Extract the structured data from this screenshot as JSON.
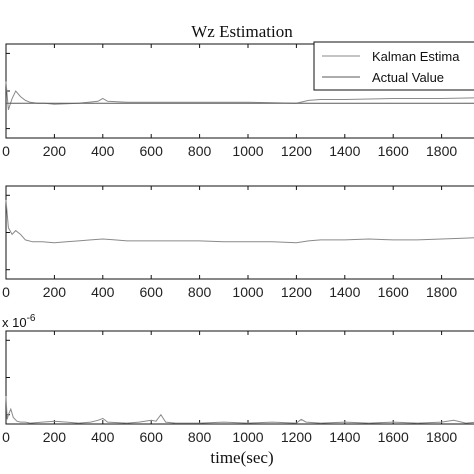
{
  "chart_data": [
    {
      "type": "line",
      "title": "Wz Estimation",
      "xlabel": "",
      "ylabel": "",
      "xlim": [
        0,
        2000
      ],
      "xticks": [
        0,
        200,
        400,
        600,
        800,
        1000,
        1200,
        1400,
        1600,
        1800
      ],
      "legend": {
        "placement": "top-right",
        "entries": [
          "Kalman Estima",
          "Actual Value"
        ]
      },
      "series": [
        {
          "name": "Kalman Estima",
          "x": [
            0,
            10,
            25,
            40,
            60,
            80,
            100,
            130,
            160,
            200,
            300,
            380,
            400,
            420,
            500,
            600,
            800,
            1000,
            1200,
            1250,
            1300,
            1400,
            1600,
            1800,
            2000
          ],
          "y": [
            0.6,
            0.3,
            0.42,
            0.5,
            0.44,
            0.4,
            0.38,
            0.37,
            0.37,
            0.36,
            0.37,
            0.39,
            0.42,
            0.39,
            0.38,
            0.38,
            0.38,
            0.38,
            0.37,
            0.4,
            0.41,
            0.41,
            0.42,
            0.42,
            0.43
          ]
        },
        {
          "name": "Actual Value",
          "x": [
            0,
            2000
          ],
          "y": [
            0.37,
            0.37
          ]
        }
      ]
    },
    {
      "type": "line",
      "title": "",
      "xlabel": "",
      "ylabel": "",
      "xlim": [
        0,
        2000
      ],
      "xticks": [
        0,
        200,
        400,
        600,
        800,
        1000,
        1200,
        1400,
        1600,
        1800
      ],
      "series": [
        {
          "x": [
            0,
            10,
            25,
            40,
            60,
            80,
            110,
            150,
            200,
            250,
            300,
            350,
            400,
            450,
            500,
            600,
            700,
            800,
            900,
            1000,
            1100,
            1200,
            1250,
            1300,
            1400,
            1500,
            1600,
            1700,
            1800,
            1900,
            2000
          ],
          "y": [
            0.85,
            0.55,
            0.48,
            0.52,
            0.48,
            0.42,
            0.4,
            0.4,
            0.39,
            0.4,
            0.41,
            0.42,
            0.43,
            0.42,
            0.41,
            0.41,
            0.41,
            0.41,
            0.4,
            0.4,
            0.4,
            0.39,
            0.41,
            0.42,
            0.42,
            0.43,
            0.42,
            0.42,
            0.43,
            0.44,
            0.45
          ]
        }
      ]
    },
    {
      "type": "line",
      "title": "",
      "xlabel": "time(sec)",
      "ylabel": "",
      "y_exponent": "x 10",
      "y_exponent_power": "-6",
      "xlim": [
        0,
        2000
      ],
      "xticks": [
        0,
        200,
        400,
        600,
        800,
        1000,
        1200,
        1400,
        1600,
        1800
      ],
      "series": [
        {
          "x": [
            0,
            5,
            10,
            20,
            30,
            45,
            60,
            80,
            100,
            150,
            200,
            250,
            300,
            350,
            380,
            400,
            420,
            500,
            550,
            600,
            620,
            640,
            660,
            700,
            800,
            900,
            1000,
            1100,
            1200,
            1220,
            1240,
            1300,
            1400,
            1500,
            1600,
            1700,
            1800,
            1850,
            1900,
            1950,
            2000
          ],
          "y": [
            0.3,
            0.05,
            0.1,
            0.16,
            0.07,
            0.03,
            0.02,
            0.02,
            0.01,
            0.02,
            0.03,
            0.02,
            0.01,
            0.02,
            0.04,
            0.06,
            0.02,
            0.01,
            0.02,
            0.04,
            0.03,
            0.1,
            0.02,
            0.01,
            0.01,
            0.02,
            0.01,
            0.02,
            0.01,
            0.05,
            0.02,
            0.01,
            0.02,
            0.01,
            0.02,
            0.01,
            0.02,
            0.04,
            0.01,
            0.02,
            0.08
          ]
        }
      ]
    }
  ]
}
